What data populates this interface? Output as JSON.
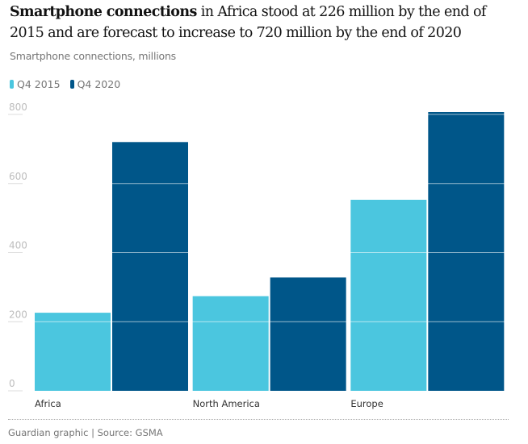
{
  "headline": {
    "bold": "Smartphone connections",
    "rest": " in Africa stood at 226 million by the end of 2015 and are forecast to increase to 720 million by the end of 2020"
  },
  "subtitle": "Smartphone connections, millions",
  "footer": "Guardian graphic | Source: GSMA",
  "chart_data": {
    "type": "bar",
    "categories": [
      "Africa",
      "North America",
      "Europe"
    ],
    "series": [
      {
        "name": "Q4 2015",
        "color": "#4bc6df",
        "values": [
          226,
          274,
          553
        ]
      },
      {
        "name": "Q4 2020",
        "color": "#005689",
        "values": [
          720,
          328,
          807
        ]
      }
    ],
    "ylim": [
      0,
      800
    ],
    "yticks": [
      "0",
      "200",
      "400",
      "600",
      "800"
    ],
    "grid": true,
    "legend": "top-left"
  }
}
